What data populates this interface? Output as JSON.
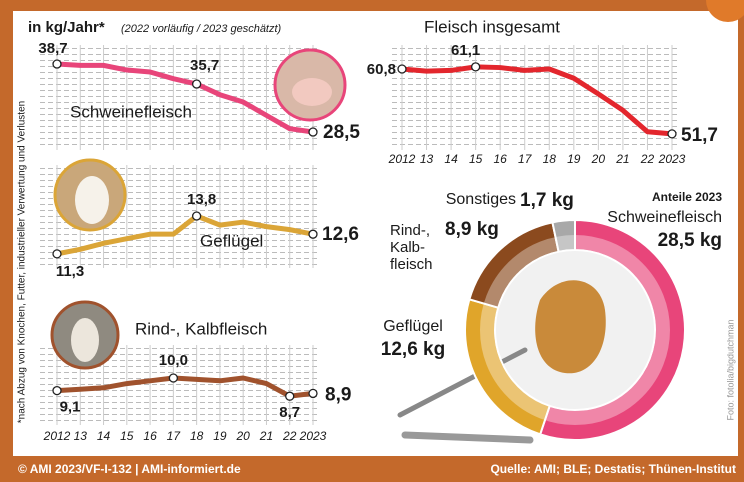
{
  "title": "in kg/Jahr*",
  "subtitle": "(2022 vorläufig / 2023 geschätzt)",
  "footnote": "*nach Abzug von Knochen, Futter, industrieller Verwertung und Verlusten",
  "photo_credit": "Foto: fotolia/bigdutchman",
  "footer": {
    "left": "© AMI 2023/VF-I-132 | AMI-informiert.de",
    "right": "Quelle: AMI; BLE; Destatis; Thünen-Institut"
  },
  "chart_data": [
    {
      "type": "line",
      "title": "Schweinefleisch",
      "color": "#e8457a",
      "grid": true,
      "x": [
        2012,
        2013,
        2014,
        2015,
        2016,
        2017,
        2018,
        2019,
        2020,
        2021,
        2022,
        2023
      ],
      "values": [
        38.7,
        38.5,
        38.5,
        37.8,
        37.5,
        36.5,
        35.7,
        34.1,
        33.0,
        31.0,
        29.0,
        28.5
      ],
      "value_labels": [
        "38,7",
        null,
        null,
        null,
        null,
        null,
        "35,7",
        null,
        null,
        null,
        null,
        "28,5"
      ],
      "xlim": [
        2012,
        2023
      ],
      "ylim": [
        26,
        41
      ]
    },
    {
      "type": "line",
      "title": "Fleisch insgesamt",
      "color": "#e3262d",
      "grid": true,
      "x": [
        2012,
        2013,
        2014,
        2015,
        2016,
        2017,
        2018,
        2019,
        2020,
        2021,
        2022,
        2023
      ],
      "values": [
        60.8,
        60.5,
        60.6,
        61.1,
        61.0,
        60.6,
        60.8,
        59.5,
        57.3,
        55.0,
        52.0,
        51.7
      ],
      "value_labels": [
        "60,8",
        null,
        null,
        "61,1",
        null,
        null,
        null,
        null,
        null,
        null,
        null,
        "51,7"
      ],
      "xlim": [
        2012,
        2023
      ],
      "ylim": [
        50,
        63
      ],
      "xticks": [
        2012,
        {
          "value": 2013,
          "label": "13"
        },
        {
          "value": 2014,
          "label": "14"
        },
        {
          "value": 2015,
          "label": "15"
        },
        {
          "value": 2016,
          "label": "16"
        },
        {
          "value": 2017,
          "label": "17"
        },
        {
          "value": 2018,
          "label": "18"
        },
        {
          "value": 2019,
          "label": "19"
        },
        {
          "value": 2020,
          "label": "20"
        },
        {
          "value": 2021,
          "label": "21"
        },
        {
          "value": 2022,
          "label": "22"
        },
        2023
      ]
    },
    {
      "type": "line",
      "title": "Geflügel",
      "color": "#dba537",
      "grid": true,
      "x": [
        2012,
        2013,
        2014,
        2015,
        2016,
        2017,
        2018,
        2019,
        2020,
        2021,
        2022,
        2023
      ],
      "values": [
        11.3,
        11.6,
        12.0,
        12.3,
        12.6,
        12.6,
        13.8,
        13.2,
        13.4,
        13.1,
        12.9,
        12.6
      ],
      "value_labels": [
        "11,3",
        null,
        null,
        null,
        null,
        null,
        "13,8",
        null,
        null,
        null,
        null,
        "12,6"
      ],
      "xlim": [
        2012,
        2023
      ],
      "ylim": [
        10.5,
        14.5
      ]
    },
    {
      "type": "line",
      "title": "Rind-, Kalbfleisch",
      "color": "#a0522d",
      "grid": true,
      "x": [
        2012,
        2013,
        2014,
        2015,
        2016,
        2017,
        2018,
        2019,
        2020,
        2021,
        2022,
        2023
      ],
      "values": [
        9.1,
        9.2,
        9.3,
        9.6,
        9.8,
        10.0,
        9.9,
        9.8,
        10.0,
        9.6,
        8.7,
        8.9
      ],
      "value_labels": [
        "9,1",
        null,
        null,
        null,
        null,
        "10,0",
        null,
        null,
        null,
        null,
        "8,7",
        "8,9"
      ],
      "xlim": [
        2012,
        2023
      ],
      "ylim": [
        8,
        11
      ],
      "xticks": [
        2012,
        {
          "value": 2013,
          "label": "13"
        },
        {
          "value": 2014,
          "label": "14"
        },
        {
          "value": 2015,
          "label": "15"
        },
        {
          "value": 2016,
          "label": "16"
        },
        {
          "value": 2017,
          "label": "17"
        },
        {
          "value": 2018,
          "label": "18"
        },
        {
          "value": 2019,
          "label": "19"
        },
        {
          "value": 2020,
          "label": "20"
        },
        {
          "value": 2021,
          "label": "21"
        },
        {
          "value": 2022,
          "label": "22"
        },
        2023
      ]
    },
    {
      "type": "pie",
      "title": "Anteile 2023",
      "categories": [
        "Schweinefleisch",
        "Geflügel",
        "Rind-, Kalb- fleisch",
        "Sonstiges"
      ],
      "values": [
        28.5,
        12.6,
        8.9,
        1.7
      ],
      "value_labels": [
        "28,5 kg",
        "12,6 kg",
        "8,9 kg",
        "1,7 kg"
      ],
      "colors": [
        "#e8457a",
        "#e0a52a",
        "#8b4a1e",
        "#a8a8a8"
      ]
    }
  ]
}
